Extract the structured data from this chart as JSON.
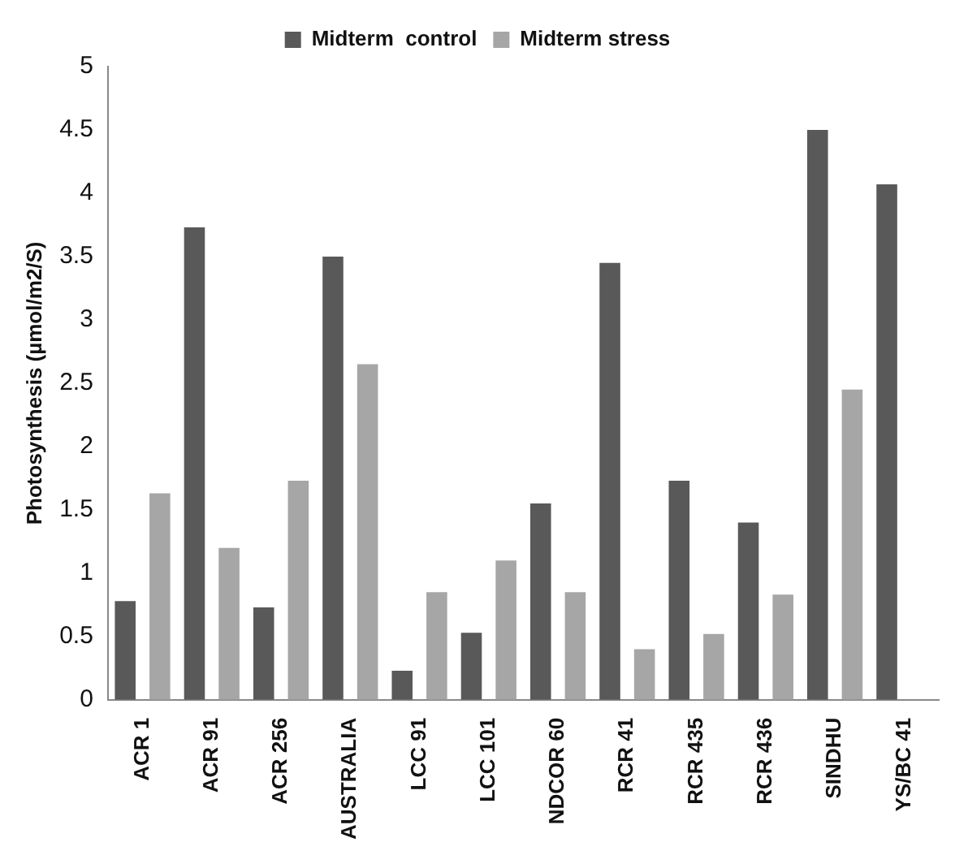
{
  "chart_data": {
    "type": "bar",
    "ylabel": "Photosynthesis (µmol/m2/S)",
    "categories": [
      "ACR 1",
      "ACR 91",
      "ACR 256",
      "AUSTRALIA",
      "LCC 91",
      "LCC 101",
      "NDCOR 60",
      "RCR 41",
      "RCR 435",
      "RCR 436",
      "SINDHU",
      "YS/BC 41"
    ],
    "series": [
      {
        "name": "Midterm  control",
        "color": "#595959",
        "values": [
          0.78,
          3.73,
          0.73,
          3.5,
          0.23,
          0.53,
          1.55,
          3.45,
          1.73,
          1.4,
          4.5,
          4.07
        ]
      },
      {
        "name": "Midterm stress",
        "color": "#a6a6a6",
        "values": [
          1.63,
          1.2,
          1.73,
          2.65,
          0.85,
          1.1,
          0.85,
          0.4,
          0.52,
          0.83,
          2.45,
          null
        ]
      }
    ],
    "ylim": [
      0,
      5
    ],
    "yticks": [
      0,
      0.5,
      1,
      1.5,
      2,
      2.5,
      3,
      3.5,
      4,
      4.5,
      5
    ],
    "grid": false,
    "legend": "top"
  }
}
